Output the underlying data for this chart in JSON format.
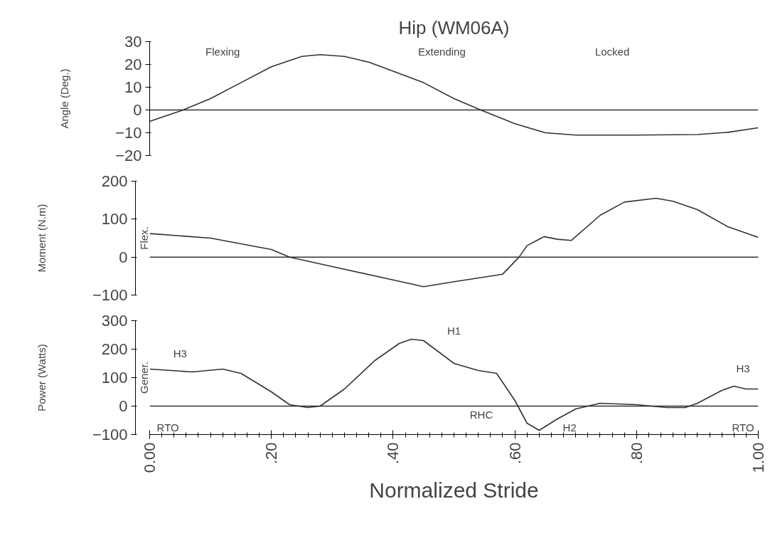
{
  "chart_data": [
    {
      "type": "line",
      "title": "Hip (WM06A)",
      "ylabel": "Angle (Deg.)",
      "xlim": [
        0,
        1
      ],
      "ylim": [
        -20,
        30
      ],
      "yticks": [
        -20,
        -10,
        0,
        10,
        20,
        30
      ],
      "tick_labels": "y",
      "grid": false,
      "x": [
        0,
        0.05,
        0.1,
        0.15,
        0.2,
        0.25,
        0.28,
        0.32,
        0.36,
        0.4,
        0.45,
        0.5,
        0.544,
        0.6,
        0.65,
        0.7,
        0.8,
        0.9,
        0.95,
        1.0
      ],
      "series": [
        {
          "color": "#333333",
          "values": [
            -5,
            -0.5,
            5,
            12,
            19,
            23.5,
            24.3,
            23.5,
            21,
            17,
            12,
            5,
            0,
            -6,
            -10,
            -11,
            -11,
            -10.8,
            -9.8,
            -7.8
          ]
        }
      ],
      "ref_lines": [
        {
          "axis": "y",
          "value": 0,
          "color": "#333333"
        }
      ],
      "annotations": [
        "Flexing",
        "Extending",
        "Locked"
      ]
    },
    {
      "type": "line",
      "ylabel": "Moment (N.m)",
      "xlim": [
        0,
        1
      ],
      "ylim": [
        -100,
        200
      ],
      "yticks": [
        -100,
        0,
        100,
        200
      ],
      "tick_labels": "y",
      "grid": false,
      "x": [
        0,
        0.1,
        0.2,
        0.23,
        0.3,
        0.4,
        0.45,
        0.5,
        0.54,
        0.58,
        0.607,
        0.62,
        0.648,
        0.67,
        0.693,
        0.74,
        0.78,
        0.832,
        0.86,
        0.9,
        0.95,
        1.0
      ],
      "series": [
        {
          "color": "#333333",
          "values": [
            62,
            50,
            20,
            0,
            -25,
            -60,
            -78,
            -65,
            -55,
            -45,
            0,
            30,
            54,
            47,
            44,
            110,
            145,
            155,
            147,
            125,
            80,
            52
          ]
        }
      ],
      "ref_lines": [
        {
          "axis": "y",
          "value": 0,
          "color": "#333333"
        }
      ],
      "annotations": [
        "Flex."
      ]
    },
    {
      "type": "line",
      "ylabel": "Power (Watts)",
      "xlabel": "Normalized Stride",
      "xlim": [
        0,
        1
      ],
      "ylim": [
        -100,
        300
      ],
      "yticks": [
        -100,
        0,
        100,
        200,
        300
      ],
      "xticks": [
        {
          "value": 0,
          "label": "0.00"
        },
        {
          "value": 0.2,
          "label": ".20"
        },
        {
          "value": 0.4,
          "label": ".40"
        },
        {
          "value": 0.6,
          "label": ".60"
        },
        {
          "value": 0.8,
          "label": ".80"
        },
        {
          "value": 1.0,
          "label": "1.00"
        }
      ],
      "grid": false,
      "x": [
        0,
        0.07,
        0.12,
        0.15,
        0.2,
        0.23,
        0.26,
        0.28,
        0.32,
        0.37,
        0.41,
        0.43,
        0.45,
        0.5,
        0.54,
        0.57,
        0.6,
        0.62,
        0.64,
        0.67,
        0.7,
        0.74,
        0.8,
        0.85,
        0.88,
        0.9,
        0.94,
        0.96,
        0.98,
        1.0
      ],
      "series": [
        {
          "color": "#333333",
          "values": [
            130,
            120,
            130,
            115,
            50,
            5,
            -5,
            0,
            60,
            160,
            220,
            235,
            230,
            150,
            125,
            115,
            20,
            -60,
            -85,
            -45,
            -10,
            10,
            5,
            -5,
            -5,
            10,
            55,
            70,
            60,
            60
          ]
        }
      ],
      "ref_lines": [
        {
          "axis": "y",
          "value": 0,
          "color": "#333333"
        }
      ],
      "annotations": [
        "Gener.",
        "H3",
        "H1",
        "RHC",
        "H2",
        "H3",
        "RTO",
        "RTO"
      ]
    }
  ]
}
